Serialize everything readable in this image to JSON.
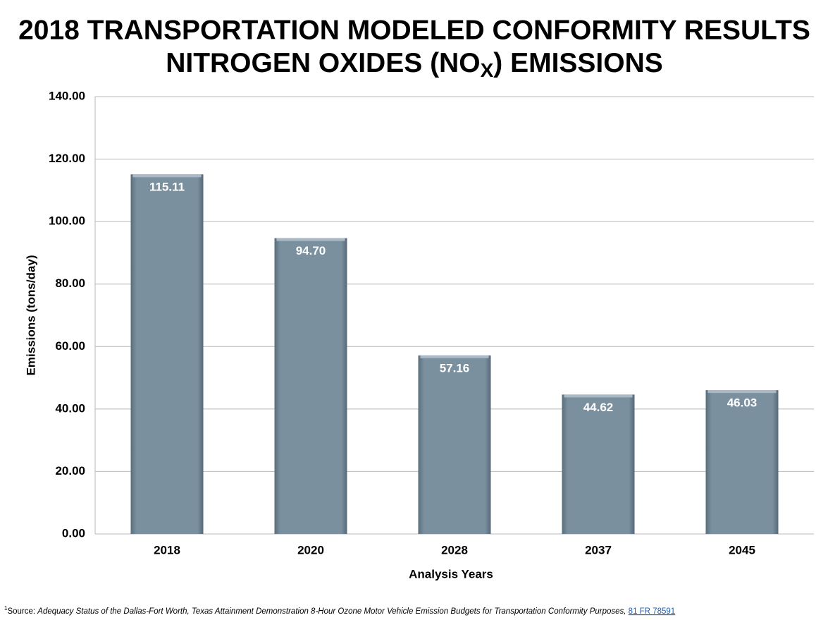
{
  "chart_data": {
    "type": "bar",
    "title": "2018 TRANSPORTATION MODELED CONFORMITY RESULTS",
    "subtitle": {
      "before": "NITROGEN OXIDES (NO",
      "subscript": "X",
      "after": ") EMISSIONS"
    },
    "categories": [
      "2018",
      "2020",
      "2028",
      "2037",
      "2045"
    ],
    "values": [
      115.11,
      94.7,
      57.16,
      44.62,
      46.03
    ],
    "value_labels": [
      "115.11",
      "94.70",
      "57.16",
      "44.62",
      "46.03"
    ],
    "color": "#7b909f",
    "ylim": [
      0,
      140
    ],
    "yticks": [
      {
        "value": 0,
        "label": "0.00"
      },
      {
        "value": 20,
        "label": "20.00"
      },
      {
        "value": 40,
        "label": "40.00"
      },
      {
        "value": 60,
        "label": "60.00"
      },
      {
        "value": 80,
        "label": "80.00"
      },
      {
        "value": 100,
        "label": "100.00"
      },
      {
        "value": 120,
        "label": "120.00"
      },
      {
        "value": 140,
        "label": "140.00"
      }
    ],
    "grid": true,
    "x_label": "Analysis Years",
    "y_label": "Emissions (tons/day)",
    "footnote": {
      "marker": "1",
      "prefix": "Source: ",
      "text": "Adequacy Status of the Dallas-Fort Worth, Texas Attainment Demonstration 8-Hour Ozone Motor Vehicle Emission Budgets for Transportation Conformity Purposes,",
      "link": "81 FR 78591"
    }
  }
}
